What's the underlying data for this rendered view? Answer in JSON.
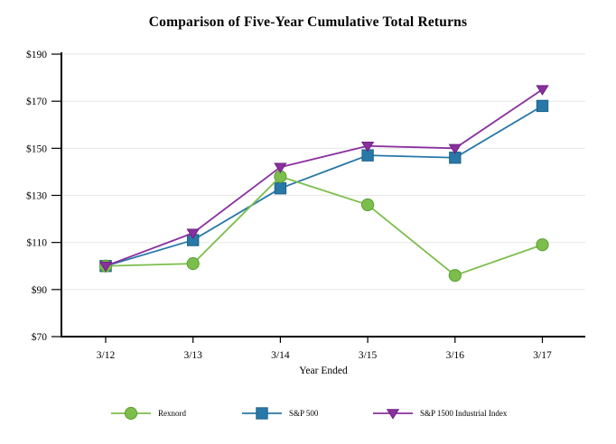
{
  "title": "Comparison of Five-Year Cumulative Total Returns",
  "chart_data": {
    "type": "line",
    "title": "Comparison of Five-Year Cumulative Total Returns",
    "xlabel": "Year Ended",
    "ylabel": "",
    "categories": [
      "3/12",
      "3/13",
      "3/14",
      "3/15",
      "3/16",
      "3/17"
    ],
    "series": [
      {
        "name": "Rexnord",
        "marker": "circle",
        "color": "#7CBE4C",
        "marker_edge_color": "#5B9E33",
        "values": [
          100,
          101,
          138,
          126,
          96,
          109
        ]
      },
      {
        "name": "S&P 500",
        "marker": "square",
        "color": "#2878A8",
        "marker_edge_color": "#1D6289",
        "values": [
          100,
          111,
          133,
          147,
          146,
          168
        ]
      },
      {
        "name": "S&P 1500 Industrial Index",
        "marker": "triangle-down",
        "color": "#8A2F9E",
        "marker_edge_color": "#6E2380",
        "values": [
          100,
          114,
          142,
          151,
          150,
          175
        ]
      }
    ],
    "ylim": [
      70,
      190
    ],
    "ytick_step": 20,
    "ytick_labels": [
      "$70",
      "$90",
      "$110",
      "$130",
      "$150",
      "$170",
      "$190"
    ],
    "grid": "horizontal",
    "grid_color": "#EAEAEA",
    "axis_color": "#000000",
    "legend_position": "bottom"
  }
}
